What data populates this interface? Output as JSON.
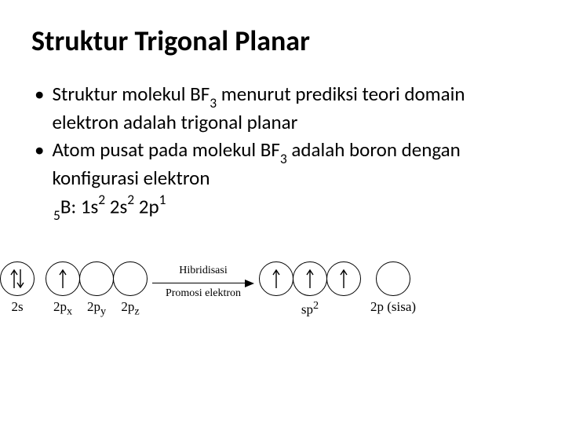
{
  "title": "Struktur Trigonal Planar",
  "bullets": {
    "b1_a": "Struktur molekul BF",
    "b1_sub": "3",
    "b1_b": " menurut prediksi teori domain elektron adalah trigonal planar",
    "b2_a": "Atom pusat pada molekul BF",
    "b2_sub": "3",
    "b2_b": " adalah boron dengan konfigurasi elektron",
    "cfg_pre": "5",
    "cfg_sym": "B: ",
    "cfg_1": "1s",
    "cfg_1e": "2",
    "cfg_2": " 2s",
    "cfg_2e": "2",
    "cfg_3": " 2p",
    "cfg_3e": "1"
  },
  "diagram": {
    "left": {
      "s": {
        "fill": "updown",
        "label": "2s"
      },
      "p": [
        {
          "fill": "up",
          "label_html": "2p<sub>x</sub>"
        },
        {
          "fill": "",
          "label_html": "2p<sub>y</sub>"
        },
        {
          "fill": "",
          "label_html": "2p<sub>z</sub>"
        }
      ]
    },
    "arrow": {
      "top": "Hibridisasi",
      "bottom": "Promosi elektron"
    },
    "right": {
      "sp2": [
        {
          "fill": "up"
        },
        {
          "fill": "up"
        },
        {
          "fill": "up"
        }
      ],
      "sp2_label_html": "sp<sup>2</sup>",
      "p_leftover": {
        "fill": "",
        "label": "2p (sisa)"
      }
    }
  }
}
